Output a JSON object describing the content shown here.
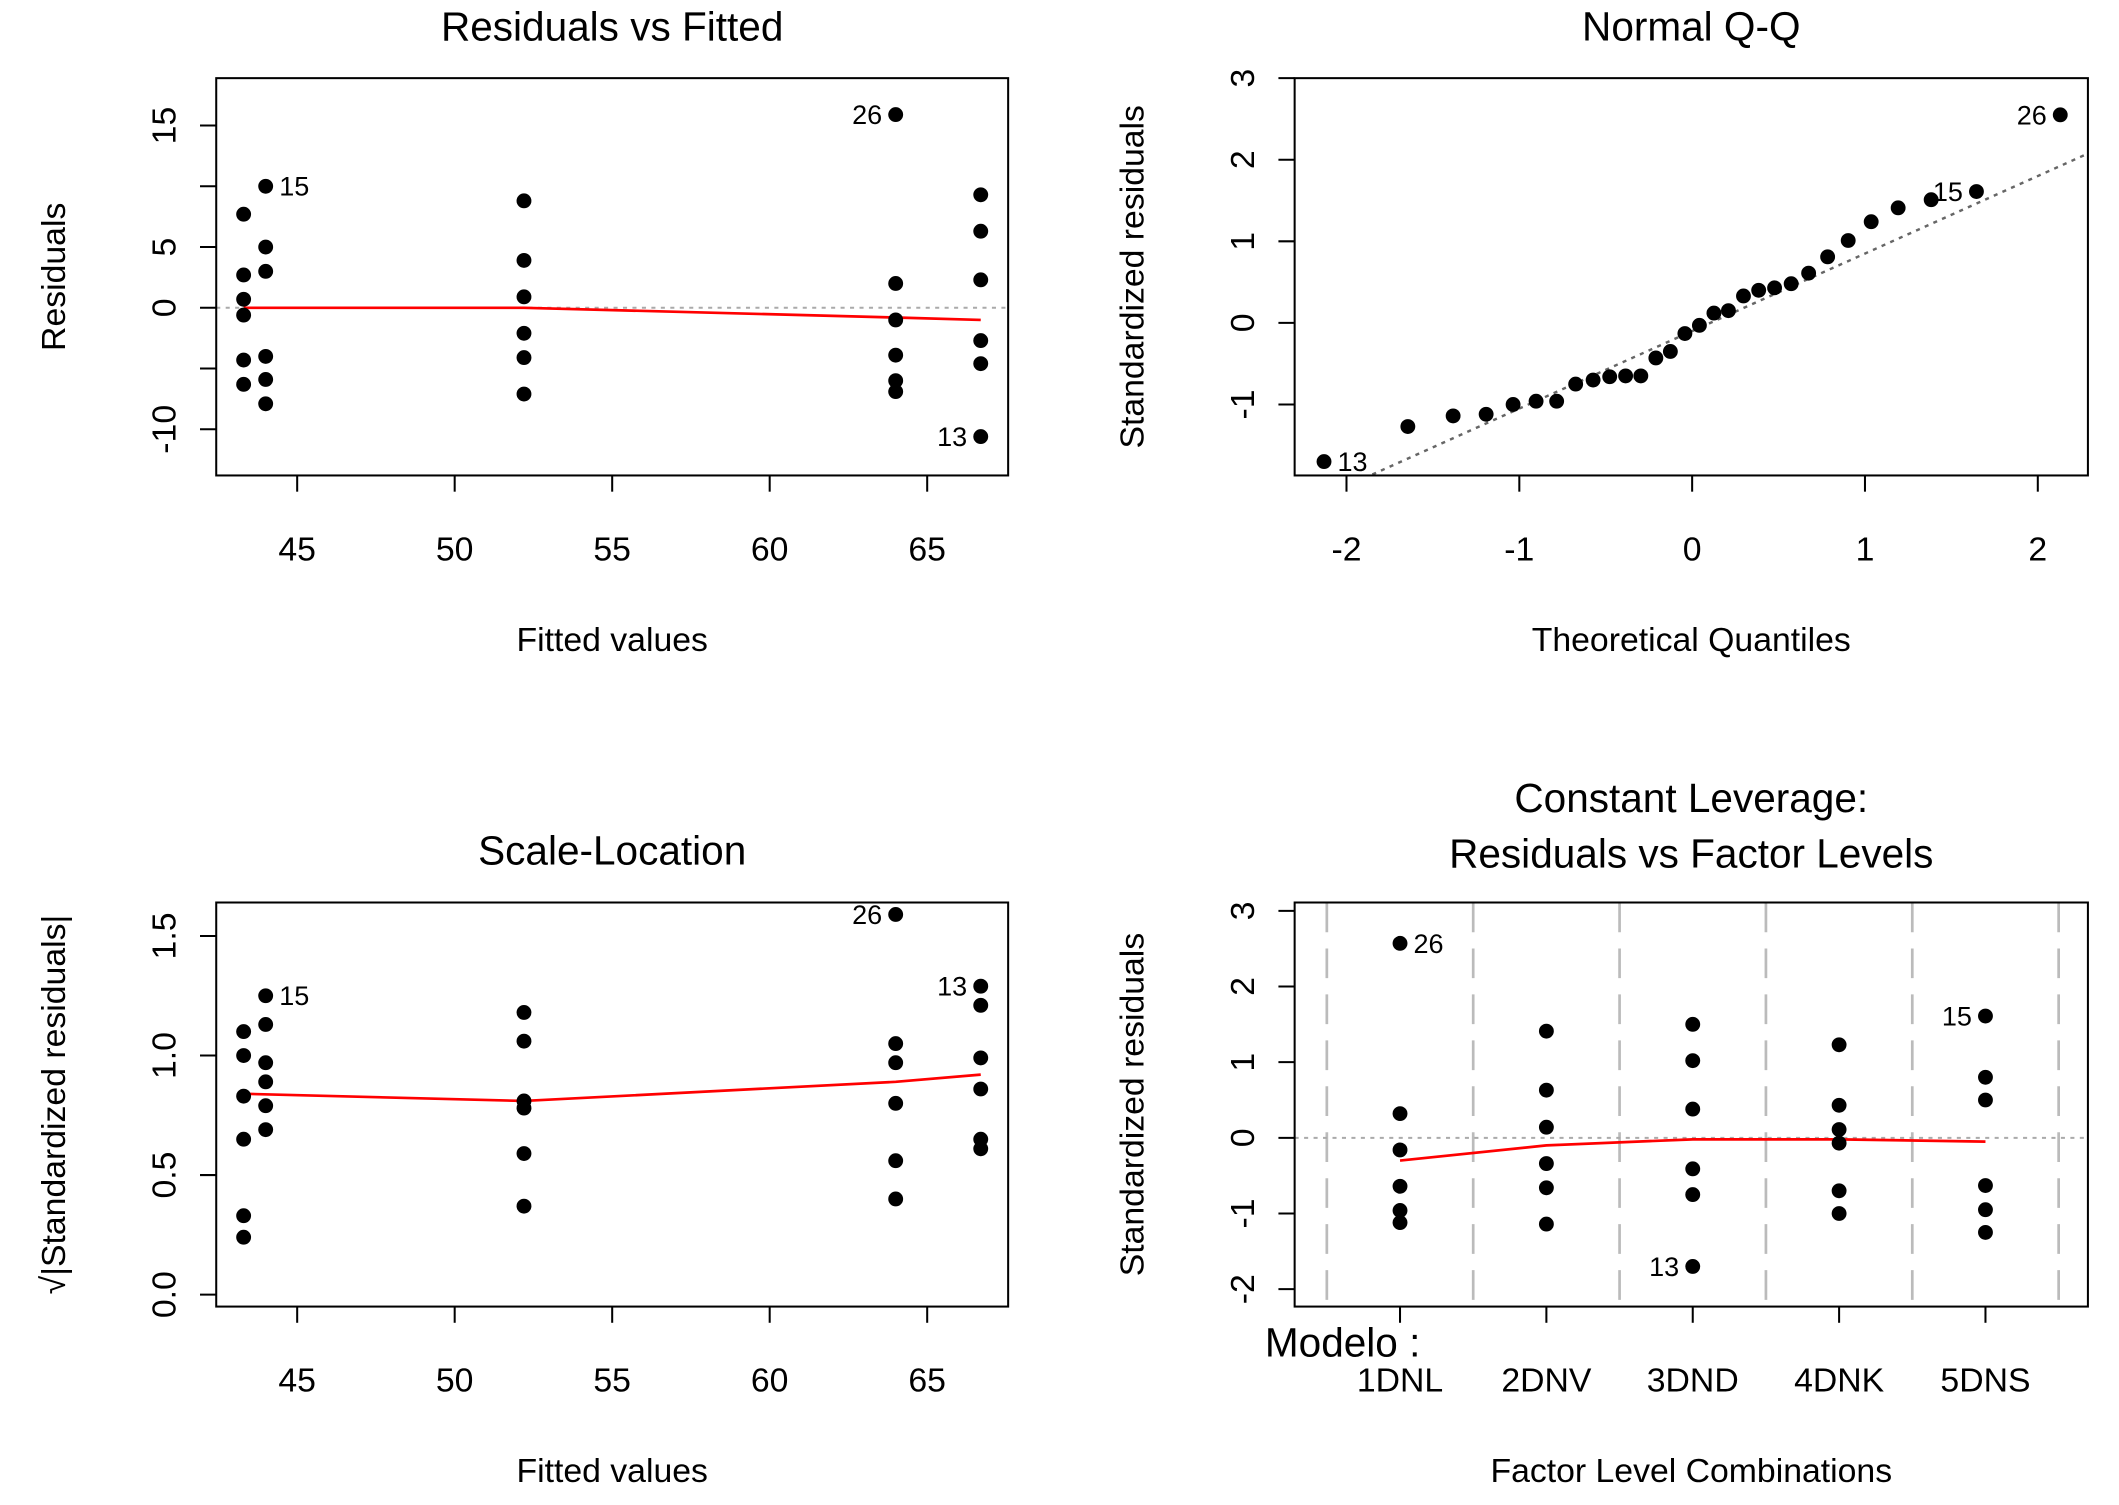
{
  "chart_data": [
    {
      "type": "scatter",
      "title": "Residuals vs Fitted",
      "x_label": "Fitted values",
      "y_label": "Residuals",
      "xlim": [
        42.43,
        67.57
      ],
      "ylim": [
        -13.8,
        18.9
      ],
      "xticks": [
        45,
        50,
        55,
        60,
        65
      ],
      "yticks": [
        -10,
        {
          "value": -5,
          "label": null
        },
        0,
        5,
        {
          "value": 10,
          "label": null
        },
        15
      ],
      "x": [
        43.3,
        43.3,
        43.3,
        43.3,
        43.3,
        43.3,
        44.0,
        44.0,
        44.0,
        44.0,
        44.0,
        44.0,
        52.2,
        52.2,
        52.2,
        52.2,
        52.2,
        52.2,
        64.0,
        64.0,
        64.0,
        64.0,
        64.0,
        64.0,
        66.7,
        66.7,
        66.7,
        66.7,
        66.7,
        66.7
      ],
      "y": [
        7.7,
        2.7,
        0.7,
        -0.6,
        -4.3,
        -6.3,
        10,
        5,
        3,
        -4,
        -5.9,
        -7.9,
        8.8,
        3.9,
        0.9,
        -2.1,
        -4.1,
        -7.1,
        15.9,
        2,
        -1,
        -3.9,
        -6,
        -6.9,
        9.3,
        6.3,
        2.3,
        -2.7,
        -4.6,
        -10.6
      ],
      "color": "#000000",
      "smooth": {
        "x": [
          43.3,
          44.0,
          52.2,
          64.0,
          66.7
        ],
        "y": [
          0,
          0,
          0,
          -0.8,
          -1.0
        ],
        "color": "#ff0000"
      },
      "hline": 0,
      "annotations": [
        {
          "text": "15",
          "x": 44.0,
          "y": 10
        },
        {
          "text": "26",
          "x": 64.0,
          "y": 15.9
        },
        {
          "text": "13",
          "x": 66.7,
          "y": -10.6
        }
      ]
    },
    {
      "type": "qq",
      "title": "Normal Q-Q",
      "x_label": "Theoretical Quantiles",
      "y_label": "Standardized residuals",
      "xlim": [
        -2.3,
        2.29
      ],
      "ylim": [
        -1.87,
        3.0
      ],
      "xticks": [
        -2,
        -1,
        0,
        1,
        2
      ],
      "yticks": [
        -1,
        0,
        1,
        2,
        3
      ],
      "x": [
        -2.13,
        -1.645,
        -1.383,
        -1.192,
        -1.036,
        -0.903,
        -0.784,
        -0.674,
        -0.573,
        -0.477,
        -0.385,
        -0.297,
        -0.21,
        -0.126,
        -0.042,
        0.042,
        0.126,
        0.21,
        0.297,
        0.385,
        0.477,
        0.573,
        0.674,
        0.784,
        0.903,
        1.036,
        1.192,
        1.383,
        1.645,
        2.13
      ],
      "y": [
        -1.7,
        -1.27,
        -1.14,
        -1.12,
        -1.0,
        -0.96,
        -0.96,
        -0.75,
        -0.7,
        -0.66,
        -0.65,
        -0.65,
        -0.43,
        -0.35,
        -0.13,
        -0.03,
        0.12,
        0.15,
        0.33,
        0.4,
        0.43,
        0.48,
        0.61,
        0.81,
        1.01,
        1.24,
        1.41,
        1.51,
        1.61,
        2.55
      ],
      "color": "#000000",
      "qqline": {
        "intercept": -0.1,
        "slope": 0.95
      },
      "annotations": [
        {
          "text": "13",
          "x": -2.13,
          "y": -1.7
        },
        {
          "text": "15",
          "x": 1.645,
          "y": 1.61
        },
        {
          "text": "26",
          "x": 2.13,
          "y": 2.55
        }
      ]
    },
    {
      "type": "scatter",
      "title": "Scale-Location",
      "x_label": "Fitted values",
      "y_label": "√|Standardized residuals|",
      "xlim": [
        42.43,
        67.57
      ],
      "ylim": [
        -0.05,
        1.64
      ],
      "xticks": [
        45,
        50,
        55,
        60,
        65
      ],
      "yticks": [
        {
          "value": 0,
          "label": "0.0"
        },
        0.5,
        {
          "value": 1,
          "label": "1.0"
        },
        1.5
      ],
      "x": [
        43.3,
        43.3,
        43.3,
        43.3,
        43.3,
        43.3,
        44.0,
        44.0,
        44.0,
        44.0,
        44.0,
        44.0,
        52.2,
        52.2,
        52.2,
        52.2,
        52.2,
        52.2,
        64.0,
        64.0,
        64.0,
        64.0,
        64.0,
        64.0,
        66.7,
        66.7,
        66.7,
        66.7,
        66.7,
        66.7
      ],
      "y": [
        1.1,
        1.0,
        0.83,
        0.65,
        0.33,
        0.24,
        1.25,
        1.13,
        0.97,
        0.89,
        0.79,
        0.69,
        1.18,
        1.06,
        0.81,
        0.78,
        0.59,
        0.37,
        1.59,
        1.05,
        0.97,
        0.8,
        0.56,
        0.4,
        1.29,
        1.21,
        0.99,
        0.86,
        0.65,
        0.61
      ],
      "color": "#000000",
      "smooth": {
        "x": [
          43.3,
          52.2,
          64.0,
          66.7
        ],
        "y": [
          0.84,
          0.81,
          0.89,
          0.92
        ],
        "color": "#ff0000"
      },
      "annotations": [
        {
          "text": "15",
          "x": 44.0,
          "y": 1.25
        },
        {
          "text": "26",
          "x": 64.0,
          "y": 1.59
        },
        {
          "text": "13",
          "x": 66.7,
          "y": 1.29
        }
      ]
    },
    {
      "type": "strip",
      "title": [
        "Constant Leverage:",
        "Residuals vs Factor Levels"
      ],
      "x_label": "Factor Level Combinations",
      "y_label": "Standardized residuals",
      "factor_label": "Modelo :",
      "categories": [
        "1DNL",
        "2DNV",
        "3DND",
        "4DNK",
        "5DNS"
      ],
      "xlim": [
        0.28,
        5.7
      ],
      "ylim": [
        -2.23,
        3.11
      ],
      "yticks": [
        -2,
        -1,
        0,
        1,
        2,
        3
      ],
      "values": [
        [
          2.57,
          0.32,
          -0.16,
          -0.64,
          -0.96,
          -1.12
        ],
        [
          1.41,
          0.63,
          0.14,
          -0.34,
          -0.66,
          -1.14
        ],
        [
          1.5,
          1.02,
          0.38,
          -0.41,
          -0.75,
          -1.7
        ],
        [
          1.23,
          0.43,
          0.11,
          -0.07,
          -0.7,
          -1.0
        ],
        [
          1.61,
          0.8,
          0.5,
          -0.63,
          -0.95,
          -1.25
        ]
      ],
      "color": "#000000",
      "smooth": {
        "values": [
          -0.3,
          -0.1,
          -0.02,
          -0.02,
          -0.05
        ],
        "color": "#ff0000"
      },
      "hline": 0,
      "annotations": [
        {
          "text": "26",
          "x": 1,
          "y": 2.57
        },
        {
          "text": "13",
          "x": 3,
          "y": -1.7
        },
        {
          "text": "15",
          "x": 5,
          "y": 1.61
        }
      ]
    }
  ]
}
